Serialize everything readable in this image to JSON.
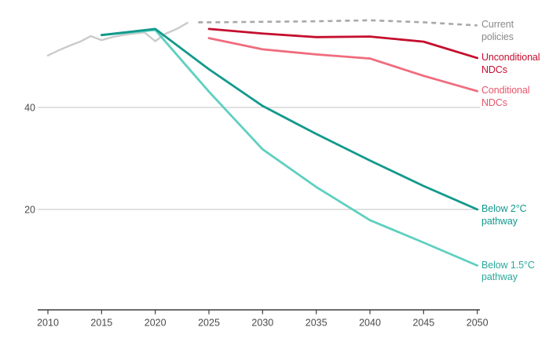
{
  "chart_data": {
    "type": "line",
    "title": "",
    "xlabel": "",
    "ylabel": "",
    "x_ticks": [
      2010,
      2015,
      2020,
      2025,
      2030,
      2035,
      2040,
      2045,
      2050
    ],
    "x_tick_labels": [
      "2010",
      "2015",
      "2020",
      "2025",
      "2030",
      "2035",
      "2040",
      "2045",
      "2050"
    ],
    "y_ticks": [
      40,
      20
    ],
    "y_tick_labels": [
      "40",
      "20"
    ],
    "xlim": [
      2009,
      2051
    ],
    "ylim": [
      0,
      62
    ],
    "grid": "horizontal-only",
    "legend_position": "right-edge-inline-labels",
    "axis_color": "#3d3d3d",
    "grid_color": "#c3c3c3",
    "tick_text_color": "#4a4a4a",
    "series": [
      {
        "id": "historical",
        "label": "",
        "color": "#cbcbcb",
        "dash": false,
        "width": 2.4,
        "x": [
          2010,
          2011,
          2012,
          2013,
          2014,
          2015,
          2016,
          2017,
          2018,
          2019,
          2020,
          2021,
          2022,
          2023
        ],
        "y": [
          50.2,
          51.2,
          52.1,
          52.9,
          54.0,
          53.2,
          53.8,
          54.2,
          54.5,
          54.7,
          53.0,
          54.5,
          55.4,
          56.6
        ]
      },
      {
        "id": "below-1-5c",
        "label": "Below 1.5°C pathway",
        "color": "#5fd0c0",
        "label_color": "#2aa89b",
        "dash": false,
        "width": 2.8,
        "x": [
          2015,
          2020,
          2025,
          2030,
          2035,
          2040,
          2045,
          2050
        ],
        "y": [
          54.2,
          55.2,
          43.1,
          31.8,
          24.4,
          17.9,
          13.5,
          9.0
        ]
      },
      {
        "id": "below-2c",
        "label": "Below 2°C pathway",
        "color": "#12998c",
        "label_color": "#12998c",
        "dash": false,
        "width": 2.8,
        "x": [
          2015,
          2020,
          2025,
          2030,
          2035,
          2040,
          2045,
          2050
        ],
        "y": [
          54.2,
          55.4,
          47.5,
          40.3,
          34.8,
          29.6,
          24.6,
          20.0
        ]
      },
      {
        "id": "conditional-ndcs",
        "label": "Conditional NDCs",
        "color": "#f06c7d",
        "label_color": "#e8566b",
        "dash": false,
        "width": 2.8,
        "x": [
          2025,
          2030,
          2035,
          2040,
          2045,
          2050
        ],
        "y": [
          53.6,
          51.4,
          50.4,
          49.6,
          46.2,
          43.2
        ]
      },
      {
        "id": "unconditional-ndcs",
        "label": "Unconditional NDCs",
        "color": "#c50e2e",
        "label_color": "#c50e2e",
        "dash": false,
        "width": 2.8,
        "x": [
          2025,
          2030,
          2035,
          2040,
          2045,
          2050
        ],
        "y": [
          55.4,
          54.5,
          53.8,
          53.9,
          52.9,
          49.7
        ]
      },
      {
        "id": "current-policies",
        "label": "Current policies",
        "color": "#a8a8a8",
        "label_color": "#8a8a8a",
        "dash": true,
        "width": 2.6,
        "x": [
          2024,
          2025,
          2030,
          2035,
          2040,
          2045,
          2050
        ],
        "y": [
          56.7,
          56.7,
          56.8,
          56.9,
          57.1,
          56.7,
          56.1
        ]
      }
    ]
  }
}
